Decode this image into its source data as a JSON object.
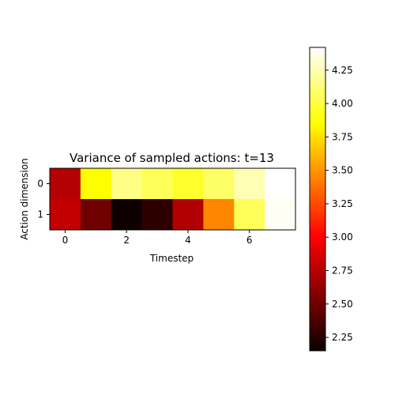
{
  "chart_data": {
    "type": "heatmap",
    "title": "Variance of sampled actions: t=13",
    "xlabel": "Timestep",
    "ylabel": "Action dimension",
    "x_ticks": [
      0,
      2,
      4,
      6
    ],
    "y_ticks": [
      0,
      1
    ],
    "x": [
      0,
      1,
      2,
      3,
      4,
      5,
      6,
      7
    ],
    "y": [
      0,
      1
    ],
    "values": [
      [
        2.75,
        3.85,
        4.15,
        4.05,
        3.95,
        4.08,
        4.25,
        4.42
      ],
      [
        2.8,
        2.52,
        2.2,
        2.3,
        2.74,
        3.45,
        4.05,
        4.4
      ]
    ],
    "colormap": "hot",
    "colorbar": {
      "range": [
        2.15,
        4.42
      ],
      "ticks": [
        "2.25",
        "2.50",
        "2.75",
        "3.00",
        "3.25",
        "3.50",
        "3.75",
        "4.00",
        "4.25"
      ]
    },
    "grid": false
  }
}
